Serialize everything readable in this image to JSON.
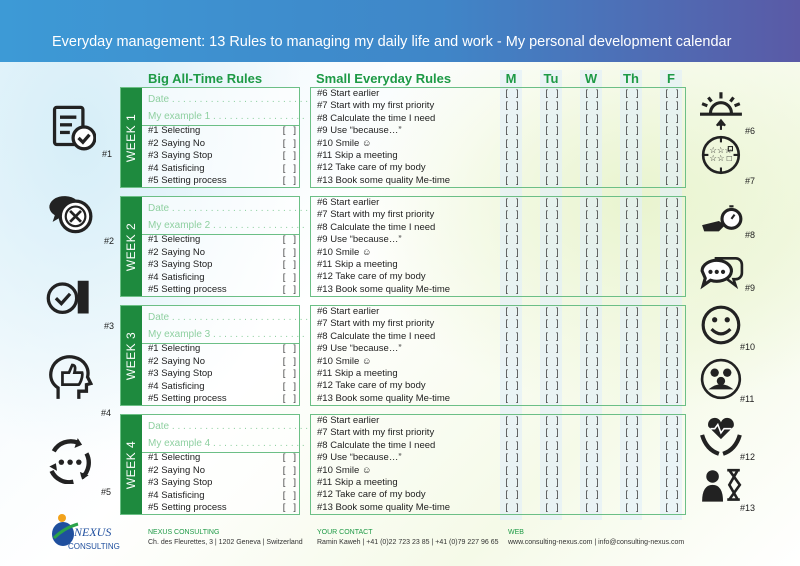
{
  "header": {
    "title": "Everyday management: 13 Rules to managing my daily life and work  - My personal development calendar"
  },
  "columns": {
    "big": "Big All-Time Rules",
    "small": "Small Everyday Rules",
    "days": [
      "M",
      "Tu",
      "W",
      "Th",
      "F"
    ]
  },
  "checkbox": "[   ]",
  "weeks": [
    {
      "label": "WEEK 1",
      "date": "Date . . . . . . . . . . . . . . . . . . . . . . . . .",
      "example": "My example 1 . . . . . . . . . . . . . . . . ."
    },
    {
      "label": "WEEK 2",
      "date": "Date . . . . . . . . . . . . . . . . . . . . . . . . .",
      "example": "My example 2 . . . . . . . . . . . . . . . . ."
    },
    {
      "label": "WEEK 3",
      "date": "Date . . . . . . . . . . . . . . . . . . . . . . . . .",
      "example": "My example 3 . . . . . . . . . . . . . . . . ."
    },
    {
      "label": "WEEK 4",
      "date": "Date . . . . . . . . . . . . . . . . . . . . . . . . .",
      "example": "My example 4 . . . . . . . . . . . . . . . . ."
    }
  ],
  "big_rules": [
    "#1 Selecting",
    "#2 Saying No",
    "#3 Saying Stop",
    "#4 Satisficing",
    "#5 Setting process"
  ],
  "small_rules": [
    "#6  Start earlier",
    "#7  Start with my first priority",
    "#8  Calculate the time I need",
    "#9  Use “because…”",
    "#10 Smile ☺",
    "#11 Skip a meeting",
    "#12 Take care of my body",
    "#13 Book some quality Me-time"
  ],
  "left_icons": [
    {
      "label": "#1",
      "icon": "document-check-icon"
    },
    {
      "label": "#2",
      "icon": "chat-cancel-icon"
    },
    {
      "label": "#3",
      "icon": "check-stop-hand-icon"
    },
    {
      "label": "#4",
      "icon": "head-thumbs-up-icon"
    },
    {
      "label": "#5",
      "icon": "process-cycle-icon"
    }
  ],
  "right_icons": [
    {
      "label": "#6",
      "icon": "sunrise-icon"
    },
    {
      "label": "#7",
      "icon": "priority-clock-icon"
    },
    {
      "label": "#8",
      "icon": "stopwatch-hand-icon"
    },
    {
      "label": "#9",
      "icon": "speech-bubbles-icon"
    },
    {
      "label": "#10",
      "icon": "smiley-icon"
    },
    {
      "label": "#11",
      "icon": "meeting-people-icon"
    },
    {
      "label": "#12",
      "icon": "heart-hands-icon"
    },
    {
      "label": "#13",
      "icon": "person-hourglass-icon"
    }
  ],
  "footer": {
    "logo": "NEXUS CONSULTING",
    "company_heading": "NEXUS CONSULTING",
    "company_address": "Ch. des Fleurettes, 3 | 1202 Geneva | Switzerland",
    "contact_heading": "YOUR CONTACT",
    "contact_text": "Ramin Kaweh | +41 (0)22 723 23 85 | +41 (0)79 227 96 65",
    "web_heading": "WEB",
    "web_text": "www.consulting-nexus.com | info@consulting-nexus.com"
  },
  "colors": {
    "header_start": "#3d9ad6",
    "header_end": "#5a5aa6",
    "accent_green": "#1e8a3e",
    "heading_green": "#1e9a46"
  }
}
